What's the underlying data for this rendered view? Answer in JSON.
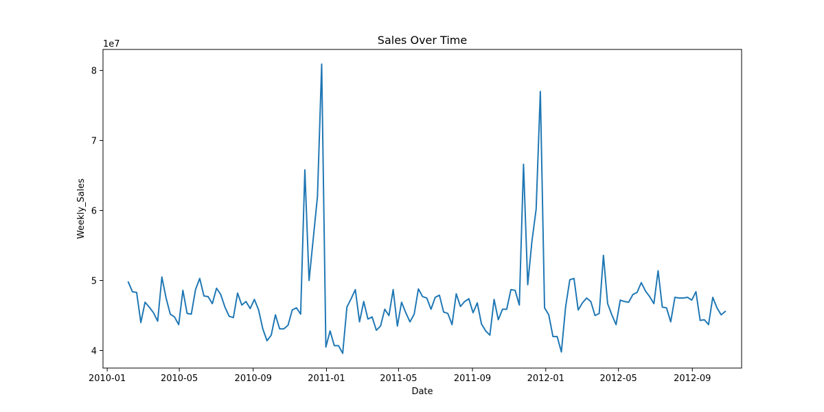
{
  "chart_data": {
    "type": "line",
    "title": "Sales Over Time",
    "xlabel": "Date",
    "ylabel": "Weekly_Sales",
    "y_scale_label": "1e7",
    "grid": false,
    "legend": "none",
    "line_color": "#1f77b4",
    "xlim": [
      "2009-12-25",
      "2012-11-22"
    ],
    "ylim": [
      3.75,
      8.3
    ],
    "x_ticks": [
      "2010-01-01",
      "2010-05-01",
      "2010-09-01",
      "2011-01-01",
      "2011-05-01",
      "2011-09-01",
      "2012-01-01",
      "2012-05-01",
      "2012-09-01"
    ],
    "x_tick_labels": [
      "2010-01",
      "2010-05",
      "2010-09",
      "2011-01",
      "2011-05",
      "2011-09",
      "2012-01",
      "2012-05",
      "2012-09"
    ],
    "y_ticks": [
      4,
      5,
      6,
      7,
      8
    ],
    "y_tick_labels": [
      "4",
      "5",
      "6",
      "7",
      "8"
    ],
    "series": [
      {
        "x": [
          "2010-02-05",
          "2010-02-12",
          "2010-02-19",
          "2010-02-26",
          "2010-03-05",
          "2010-03-12",
          "2010-03-19",
          "2010-03-26",
          "2010-04-02",
          "2010-04-09",
          "2010-04-16",
          "2010-04-23",
          "2010-04-30",
          "2010-05-07",
          "2010-05-14",
          "2010-05-21",
          "2010-05-28",
          "2010-06-04",
          "2010-06-11",
          "2010-06-18",
          "2010-06-25",
          "2010-07-02",
          "2010-07-09",
          "2010-07-16",
          "2010-07-23",
          "2010-07-30",
          "2010-08-06",
          "2010-08-13",
          "2010-08-20",
          "2010-08-27",
          "2010-09-03",
          "2010-09-10",
          "2010-09-17",
          "2010-09-24",
          "2010-10-01",
          "2010-10-08",
          "2010-10-15",
          "2010-10-22",
          "2010-10-29",
          "2010-11-05",
          "2010-11-12",
          "2010-11-19",
          "2010-11-26",
          "2010-12-03",
          "2010-12-10",
          "2010-12-17",
          "2010-12-24",
          "2010-12-31",
          "2011-01-07",
          "2011-01-14",
          "2011-01-21",
          "2011-01-28",
          "2011-02-04",
          "2011-02-11",
          "2011-02-18",
          "2011-02-25",
          "2011-03-04",
          "2011-03-11",
          "2011-03-18",
          "2011-03-25",
          "2011-04-01",
          "2011-04-08",
          "2011-04-15",
          "2011-04-22",
          "2011-04-29",
          "2011-05-06",
          "2011-05-13",
          "2011-05-20",
          "2011-05-27",
          "2011-06-03",
          "2011-06-10",
          "2011-06-17",
          "2011-06-24",
          "2011-07-01",
          "2011-07-08",
          "2011-07-15",
          "2011-07-22",
          "2011-07-29",
          "2011-08-05",
          "2011-08-12",
          "2011-08-19",
          "2011-08-26",
          "2011-09-02",
          "2011-09-09",
          "2011-09-16",
          "2011-09-23",
          "2011-09-30",
          "2011-10-07",
          "2011-10-14",
          "2011-10-21",
          "2011-10-28",
          "2011-11-04",
          "2011-11-11",
          "2011-11-18",
          "2011-11-25",
          "2011-12-02",
          "2011-12-09",
          "2011-12-16",
          "2011-12-23",
          "2011-12-30",
          "2012-01-06",
          "2012-01-13",
          "2012-01-20",
          "2012-01-27",
          "2012-02-03",
          "2012-02-10",
          "2012-02-17",
          "2012-02-24",
          "2012-03-02",
          "2012-03-09",
          "2012-03-16",
          "2012-03-23",
          "2012-03-30",
          "2012-04-06",
          "2012-04-13",
          "2012-04-20",
          "2012-04-27",
          "2012-05-04",
          "2012-05-11",
          "2012-05-18",
          "2012-05-25",
          "2012-06-01",
          "2012-06-08",
          "2012-06-15",
          "2012-06-22",
          "2012-06-29",
          "2012-07-06",
          "2012-07-13",
          "2012-07-20",
          "2012-07-27",
          "2012-08-03",
          "2012-08-10",
          "2012-08-17",
          "2012-08-24",
          "2012-08-31",
          "2012-09-07",
          "2012-09-14",
          "2012-09-21",
          "2012-09-28",
          "2012-10-05",
          "2012-10-12",
          "2012-10-19",
          "2012-10-26"
        ],
        "values": [
          4.98,
          4.84,
          4.83,
          4.4,
          4.69,
          4.62,
          4.54,
          4.42,
          5.05,
          4.75,
          4.52,
          4.48,
          4.37,
          4.86,
          4.53,
          4.52,
          4.87,
          5.03,
          4.78,
          4.77,
          4.67,
          4.89,
          4.8,
          4.62,
          4.49,
          4.47,
          4.82,
          4.65,
          4.7,
          4.6,
          4.73,
          4.58,
          4.31,
          4.14,
          4.22,
          4.51,
          4.31,
          4.31,
          4.36,
          4.58,
          4.61,
          4.52,
          6.58,
          5.0,
          5.6,
          6.2,
          8.09,
          4.05,
          4.28,
          4.07,
          4.07,
          3.96,
          4.62,
          4.74,
          4.87,
          4.41,
          4.7,
          4.45,
          4.48,
          4.29,
          4.35,
          4.59,
          4.5,
          4.87,
          4.35,
          4.69,
          4.54,
          4.41,
          4.52,
          4.88,
          4.77,
          4.75,
          4.59,
          4.76,
          4.79,
          4.55,
          4.53,
          4.37,
          4.81,
          4.63,
          4.7,
          4.74,
          4.54,
          4.68,
          4.38,
          4.28,
          4.22,
          4.73,
          4.44,
          4.59,
          4.59,
          4.87,
          4.86,
          4.65,
          6.66,
          4.94,
          5.56,
          6.02,
          7.7,
          4.61,
          4.51,
          4.2,
          4.2,
          3.98,
          4.62,
          5.01,
          5.03,
          4.58,
          4.68,
          4.75,
          4.7,
          4.5,
          4.53,
          5.36,
          4.67,
          4.51,
          4.37,
          4.72,
          4.7,
          4.69,
          4.8,
          4.83,
          4.97,
          4.85,
          4.77,
          4.67,
          5.14,
          4.62,
          4.61,
          4.41,
          4.76,
          4.75,
          4.75,
          4.76,
          4.72,
          4.84,
          4.43,
          4.44,
          4.37,
          4.76,
          4.61,
          4.51,
          4.56
        ]
      }
    ]
  }
}
